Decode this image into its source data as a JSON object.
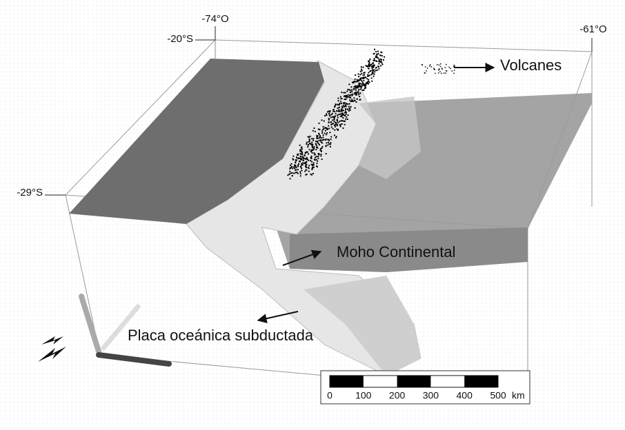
{
  "labels": {
    "lon_west": "-74°O",
    "lat_north": "-20°S",
    "lon_east": "-61°O",
    "lat_south": "-29°S"
  },
  "annotations": {
    "volcanes": "Volcanes",
    "moho": "Moho Continental",
    "placa": "Placa oceánica subductada"
  },
  "scale_bar": {
    "ticks": [
      "0",
      "100",
      "200",
      "300",
      "400",
      "500"
    ],
    "unit": "km"
  }
}
